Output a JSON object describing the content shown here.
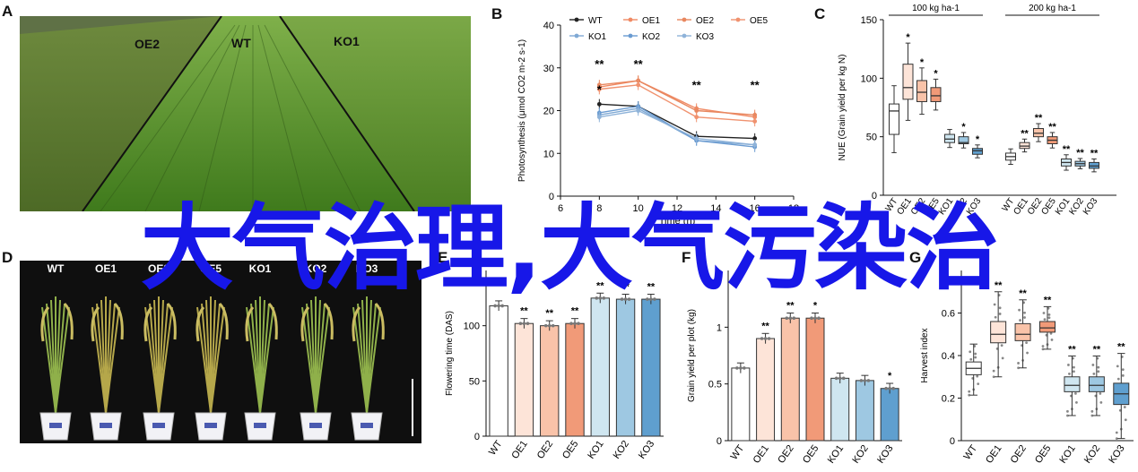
{
  "panels": {
    "A": {
      "letter": "A",
      "labels": [
        "OE2",
        "WT",
        "KO1"
      ]
    },
    "B": {
      "letter": "B"
    },
    "C": {
      "letter": "C"
    },
    "D": {
      "letter": "D",
      "labels": [
        "WT",
        "OE1",
        "OE2",
        "OE5",
        "KO1",
        "KO2",
        "KO3"
      ]
    },
    "E": {
      "letter": "E"
    },
    "F": {
      "letter": "F"
    },
    "G": {
      "letter": "G"
    }
  },
  "overlay_text": "大气治理,大气污染治",
  "colors": {
    "wt": "#222222",
    "oe1": "#f08a64",
    "oe2": "#e8875f",
    "oe5": "#f0926f",
    "ko1": "#7fa9d4",
    "ko2": "#6a9bd1",
    "ko3": "#8fb3d9",
    "oe_fill_light": "#fde4d8",
    "oe_fill_mid": "#f9c3a9",
    "oe_fill_dark": "#f19a78",
    "ko_fill_light": "#cfe6f0",
    "ko_fill_mid": "#9ec8e2",
    "ko_fill_dark": "#5f9fcf",
    "overlay": "#1717e8"
  },
  "chart_data": [
    {
      "id": "B",
      "type": "line",
      "title": "",
      "ylabel": "Photosynthesis (μmol CO2 m-2 s-1)",
      "xlabel": "Time (h)",
      "ylim": [
        0,
        40
      ],
      "yticks": [
        0,
        10,
        20,
        30,
        40
      ],
      "xlim": [
        6,
        18
      ],
      "xticks": [
        6,
        8,
        10,
        12,
        14,
        16,
        18
      ],
      "x": [
        8,
        10,
        13,
        16
      ],
      "legend": [
        "WT",
        "OE1",
        "OE2",
        "OE5",
        "KO1",
        "KO2",
        "KO3"
      ],
      "series": [
        {
          "name": "WT",
          "values": [
            21.5,
            21,
            14,
            13.5
          ]
        },
        {
          "name": "OE1",
          "values": [
            25.5,
            27,
            20.5,
            18.5
          ]
        },
        {
          "name": "OE2",
          "values": [
            26,
            27,
            20,
            19
          ]
        },
        {
          "name": "OE5",
          "values": [
            25,
            26,
            18.5,
            17.5
          ]
        },
        {
          "name": "KO1",
          "values": [
            19,
            20.5,
            13,
            12
          ]
        },
        {
          "name": "KO2",
          "values": [
            19.5,
            21,
            13,
            11.5
          ]
        },
        {
          "name": "KO3",
          "values": [
            18.5,
            20,
            13.5,
            12
          ]
        }
      ],
      "annotations": [
        {
          "x": 8,
          "text": "**"
        },
        {
          "x": 8,
          "text": "*"
        },
        {
          "x": 10,
          "text": "**"
        },
        {
          "x": 13,
          "text": "**"
        },
        {
          "x": 16,
          "text": "**"
        }
      ]
    },
    {
      "id": "C",
      "type": "box",
      "ylabel": "NUE (Grain yield per kg N)",
      "ylim": [
        0,
        150
      ],
      "yticks": [
        0,
        50,
        100,
        150
      ],
      "groups": [
        {
          "name": "100 kg ha-1",
          "categories": [
            "WT",
            "OE1",
            "OE2",
            "OE5",
            "KO1",
            "KO2",
            "KO3"
          ],
          "medians": [
            72,
            92,
            88,
            85,
            48,
            45,
            38
          ],
          "q1": [
            52,
            82,
            80,
            80,
            45,
            44,
            35
          ],
          "q3": [
            78,
            112,
            98,
            92,
            52,
            50,
            40
          ],
          "sig": [
            "",
            "*",
            "*",
            "*",
            "",
            "*",
            "*"
          ]
        },
        {
          "name": "200 kg ha-1",
          "categories": [
            "WT",
            "OE1",
            "OE2",
            "OE5",
            "KO1",
            "KO2",
            "KO3"
          ],
          "medians": [
            33,
            42,
            53,
            47,
            28,
            27,
            25
          ],
          "q1": [
            30,
            40,
            50,
            44,
            25,
            25,
            23
          ],
          "q3": [
            36,
            45,
            57,
            50,
            31,
            29,
            28
          ],
          "sig": [
            "",
            "**",
            "**",
            "**",
            "**",
            "**",
            "**"
          ]
        }
      ]
    },
    {
      "id": "E",
      "type": "bar",
      "ylabel": "Flowering time (DAS)",
      "ylim": [
        0,
        150
      ],
      "yticks": [
        0,
        50,
        100
      ],
      "categories": [
        "WT",
        "OE1",
        "OE2",
        "OE5",
        "KO1",
        "KO2",
        "KO3"
      ],
      "values": [
        118,
        102,
        100,
        102,
        125,
        124,
        124
      ],
      "sig": [
        "",
        "**",
        "**",
        "**",
        "**",
        "**",
        "**"
      ]
    },
    {
      "id": "F",
      "type": "bar",
      "ylabel": "Grain yield per plot (kg)",
      "ylim": [
        0,
        1.5
      ],
      "yticks": [
        0,
        0.5,
        1.0
      ],
      "categories": [
        "WT",
        "OE1",
        "OE2",
        "OE5",
        "KO1",
        "KO2",
        "KO3"
      ],
      "values": [
        0.64,
        0.9,
        1.08,
        1.08,
        0.55,
        0.53,
        0.46
      ],
      "sig": [
        "",
        "**",
        "**",
        "*",
        "",
        "",
        "*"
      ]
    },
    {
      "id": "G",
      "type": "box",
      "ylabel": "Harvest index",
      "ylim": [
        0,
        0.8
      ],
      "yticks": [
        0,
        0.2,
        0.4,
        0.6
      ],
      "categories": [
        "WT",
        "OE1",
        "OE2",
        "OE5",
        "KO1",
        "KO2",
        "KO3"
      ],
      "medians": [
        0.34,
        0.5,
        0.5,
        0.53,
        0.26,
        0.26,
        0.22
      ],
      "q1": [
        0.31,
        0.46,
        0.47,
        0.51,
        0.23,
        0.23,
        0.17
      ],
      "q3": [
        0.37,
        0.56,
        0.55,
        0.56,
        0.3,
        0.3,
        0.27
      ],
      "sig": [
        "",
        "**",
        "**",
        "**",
        "**",
        "**",
        "**"
      ]
    }
  ]
}
